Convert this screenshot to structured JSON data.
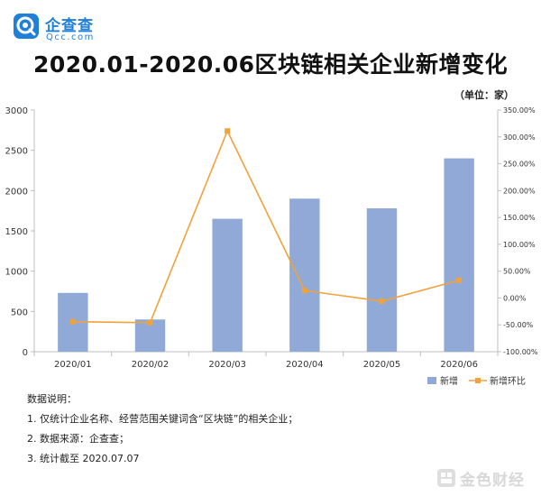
{
  "logo": {
    "name": "企查查",
    "sub": "Qcc.com"
  },
  "watermark": {
    "text": "金色财经"
  },
  "unit_label": "（单位：家）",
  "notes": {
    "heading": "数据说明：",
    "items": [
      "1. 仅统计企业名称、经营范围关键词含“区块链”的相关企业；",
      "2. 数据来源：企查查；",
      "3. 统计截至 2020.07.07"
    ]
  },
  "colors": {
    "bar": "#91a9d6",
    "line": "#f0a23c",
    "axis": "#bfbfbf",
    "text": "#333333"
  },
  "chart_data": {
    "type": "bar",
    "title": "2020.01-2020.06区块链相关企业新增变化",
    "categories": [
      "2020/01",
      "2020/02",
      "2020/03",
      "2020/04",
      "2020/05",
      "2020/06"
    ],
    "series": [
      {
        "name": "新增",
        "type": "bar",
        "axis": "left",
        "values": [
          730,
          400,
          1650,
          1900,
          1780,
          2400
        ]
      },
      {
        "name": "新增环比",
        "type": "line",
        "axis": "right",
        "values": [
          -44,
          -46,
          311,
          14,
          -6,
          33
        ]
      }
    ],
    "y_left": {
      "min": 0,
      "max": 3000,
      "ticks": [
        0,
        500,
        1000,
        1500,
        2000,
        2500,
        3000
      ]
    },
    "y_right": {
      "min": -100,
      "max": 350,
      "ticks": [
        -100,
        -50,
        0,
        50,
        100,
        150,
        200,
        250,
        300,
        350
      ],
      "tick_labels": [
        "-100.00%",
        "-50.00%",
        "0.00%",
        "50.00%",
        "100.00%",
        "150.00%",
        "200.00%",
        "250.00%",
        "300.00%",
        "350.00%"
      ]
    },
    "legend_position": "bottom-right",
    "grid": false
  }
}
